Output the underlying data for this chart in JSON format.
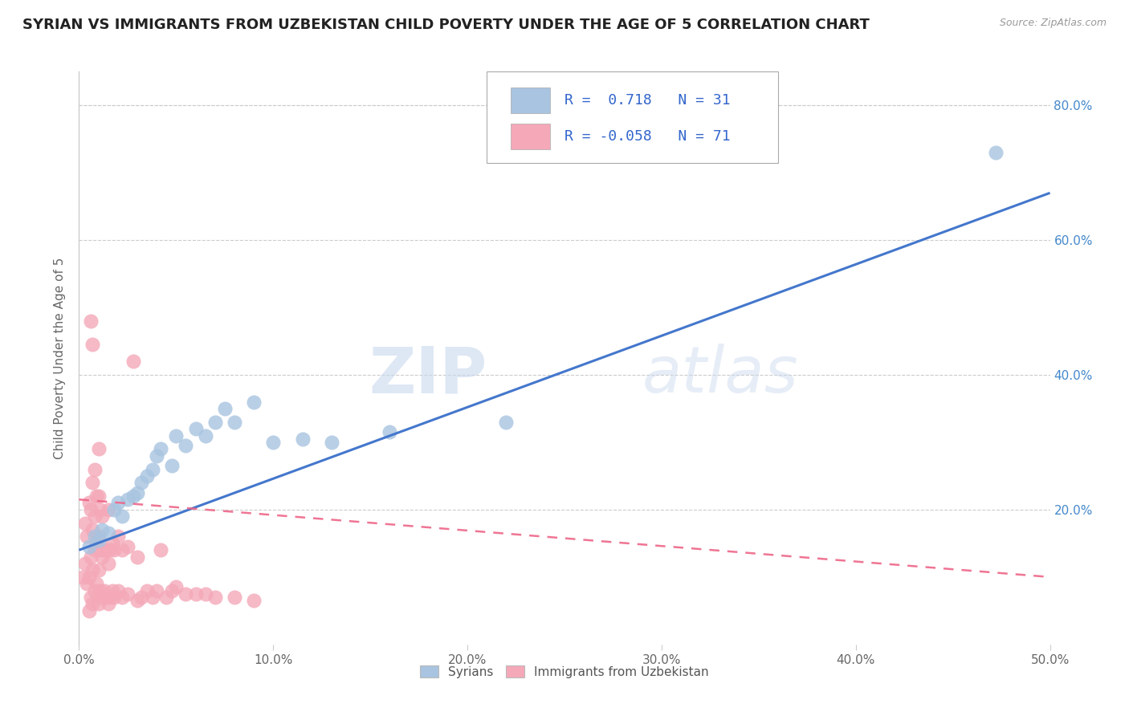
{
  "title": "SYRIAN VS IMMIGRANTS FROM UZBEKISTAN CHILD POVERTY UNDER THE AGE OF 5 CORRELATION CHART",
  "source": "Source: ZipAtlas.com",
  "ylabel": "Child Poverty Under the Age of 5",
  "xlim": [
    0.0,
    0.5
  ],
  "ylim": [
    0.0,
    0.85
  ],
  "xticks": [
    0.0,
    0.1,
    0.2,
    0.3,
    0.4,
    0.5
  ],
  "xticklabels": [
    "0.0%",
    "10.0%",
    "20.0%",
    "30.0%",
    "40.0%",
    "50.0%"
  ],
  "yticks": [
    0.2,
    0.4,
    0.6,
    0.8
  ],
  "yticklabels_right": [
    "20.0%",
    "40.0%",
    "60.0%",
    "80.0%"
  ],
  "legend_labels": [
    "Syrians",
    "Immigrants from Uzbekistan"
  ],
  "r_syrian": 0.718,
  "n_syrian": 31,
  "r_uzbek": -0.058,
  "n_uzbek": 71,
  "syrian_color": "#a8c4e0",
  "uzbek_color": "#f4a8b8",
  "line_syrian_color": "#4477cc",
  "line_uzbek_color": "#ee6688",
  "background_color": "#ffffff",
  "watermark_zip": "ZIP",
  "watermark_atlas": "atlas",
  "title_fontsize": 13,
  "axis_label_fontsize": 11,
  "tick_fontsize": 11,
  "line_syrian_x0": 0.0,
  "line_syrian_y0": 0.14,
  "line_syrian_x1": 0.5,
  "line_syrian_y1": 0.67,
  "line_uzbek_x0": 0.0,
  "line_uzbek_y0": 0.215,
  "line_uzbek_x1": 0.5,
  "line_uzbek_y1": 0.1
}
